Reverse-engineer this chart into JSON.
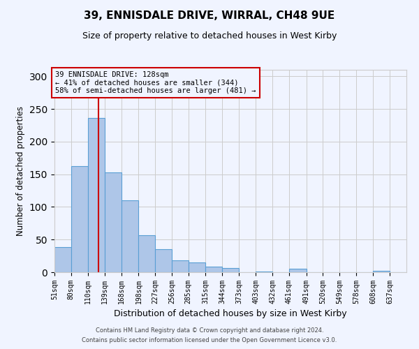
{
  "title": "39, ENNISDALE DRIVE, WIRRAL, CH48 9UE",
  "subtitle": "Size of property relative to detached houses in West Kirby",
  "xlabel": "Distribution of detached houses by size in West Kirby",
  "ylabel": "Number of detached properties",
  "bar_labels": [
    "51sqm",
    "80sqm",
    "110sqm",
    "139sqm",
    "168sqm",
    "198sqm",
    "227sqm",
    "256sqm",
    "285sqm",
    "315sqm",
    "344sqm",
    "373sqm",
    "403sqm",
    "432sqm",
    "461sqm",
    "491sqm",
    "520sqm",
    "549sqm",
    "578sqm",
    "608sqm",
    "637sqm"
  ],
  "bar_values": [
    39,
    163,
    236,
    153,
    110,
    57,
    35,
    18,
    15,
    9,
    6,
    0,
    1,
    0,
    5,
    0,
    0,
    0,
    0,
    2,
    0
  ],
  "bin_edges": [
    51,
    80,
    110,
    139,
    168,
    198,
    227,
    256,
    285,
    315,
    344,
    373,
    403,
    432,
    461,
    491,
    520,
    549,
    578,
    608,
    637,
    666
  ],
  "bar_color": "#aec6e8",
  "bar_edge_color": "#5a9fd4",
  "vline_x": 128,
  "vline_color": "#cc0000",
  "ylim": [
    0,
    310
  ],
  "yticks": [
    0,
    50,
    100,
    150,
    200,
    250,
    300
  ],
  "annotation_title": "39 ENNISDALE DRIVE: 128sqm",
  "annotation_line1": "← 41% of detached houses are smaller (344)",
  "annotation_line2": "58% of semi-detached houses are larger (481) →",
  "annotation_box_color": "#cc0000",
  "footer_line1": "Contains HM Land Registry data © Crown copyright and database right 2024.",
  "footer_line2": "Contains public sector information licensed under the Open Government Licence v3.0.",
  "background_color": "#f0f4ff",
  "grid_color": "#cccccc"
}
